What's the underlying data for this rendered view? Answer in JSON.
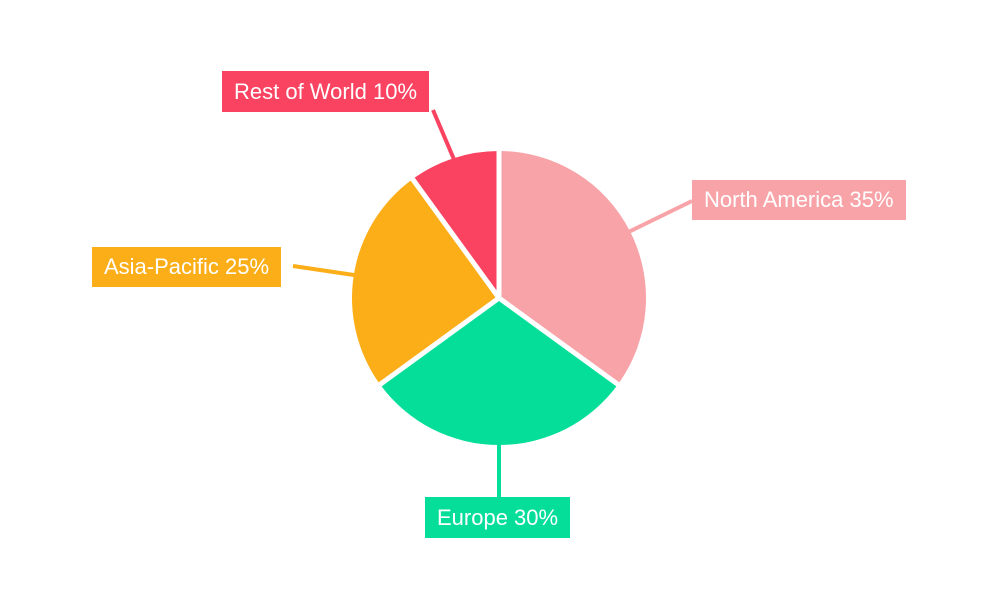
{
  "chart_data": {
    "type": "pie",
    "title": "",
    "categories": [
      "North America",
      "Europe",
      "Asia-Pacific",
      "Rest of World"
    ],
    "values": [
      35,
      30,
      25,
      10
    ],
    "unit": "%",
    "labels": [
      "North America 35%",
      "Europe 30%",
      "Asia-Pacific 25%",
      "Rest of World 10%"
    ],
    "colors": [
      "#F8A3A8",
      "#05DE99",
      "#FBAE17",
      "#FA4261"
    ],
    "start_angle_deg": 0,
    "direction": "clockwise",
    "legend_position": "none",
    "label_style": "colored-boxes-with-leader-lines",
    "label_text_color": "#FFFFFF",
    "separator_color": "#FFFFFF",
    "background": "#FFFFFF"
  }
}
